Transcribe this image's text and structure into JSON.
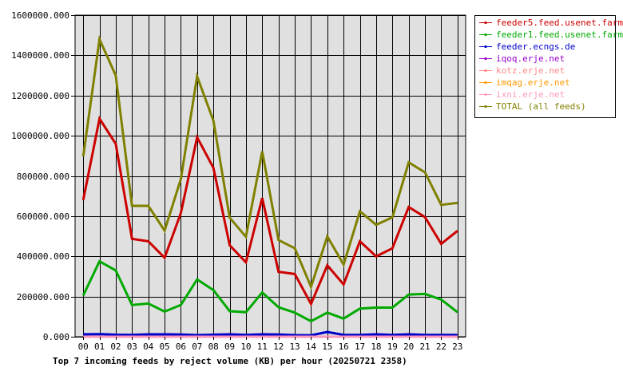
{
  "chart_data": {
    "type": "line",
    "title": "Top 7 incoming feeds by reject volume (KB) per hour (20250721 2358)",
    "xlabel": "",
    "ylabel": "",
    "categories": [
      "00",
      "01",
      "02",
      "03",
      "04",
      "05",
      "06",
      "07",
      "08",
      "09",
      "10",
      "11",
      "12",
      "13",
      "14",
      "15",
      "16",
      "17",
      "18",
      "19",
      "20",
      "21",
      "22",
      "23"
    ],
    "ylim": [
      0,
      1600000
    ],
    "yticks": [
      0,
      200000,
      400000,
      600000,
      800000,
      1000000,
      1200000,
      1400000,
      1600000
    ],
    "ytick_labels": [
      "0.000",
      "200000.000",
      "400000.000",
      "600000.000",
      "800000.000",
      "1000000.000",
      "1200000.000",
      "1400000.000",
      "1600000.000"
    ],
    "grid": true,
    "legend_position": "right",
    "series": [
      {
        "name": "feeder5.feed.usenet.farm",
        "color": "#cc0000",
        "values": [
          680000,
          1085000,
          960000,
          487000,
          475000,
          393000,
          615000,
          992000,
          840000,
          455000,
          370000,
          690000,
          323000,
          312000,
          163000,
          355000,
          260000,
          475000,
          400000,
          440000,
          645000,
          595000,
          462000,
          527000
        ]
      },
      {
        "name": "feeder1.feed.usenet.farm",
        "color": "#00aa00",
        "values": [
          205000,
          375000,
          330000,
          158000,
          165000,
          125000,
          158000,
          285000,
          232000,
          127000,
          122000,
          220000,
          147000,
          120000,
          77000,
          120000,
          90000,
          140000,
          145000,
          145000,
          210000,
          213000,
          185000,
          122000
        ]
      },
      {
        "name": "feeder.ecngs.de",
        "color": "#0000cc",
        "values": [
          12000,
          13000,
          10000,
          9000,
          12000,
          12000,
          11000,
          8000,
          10000,
          12000,
          9000,
          12000,
          11000,
          8000,
          7000,
          24000,
          9000,
          9000,
          12000,
          9000,
          12000,
          9000,
          9000,
          9000
        ]
      },
      {
        "name": "iqoq.erje.net",
        "color": "#9900cc",
        "values": [
          0,
          0,
          0,
          0,
          0,
          0,
          0,
          0,
          0,
          0,
          0,
          0,
          0,
          0,
          0,
          0,
          0,
          0,
          0,
          0,
          0,
          0,
          0,
          0
        ]
      },
      {
        "name": "kotz.erje.net",
        "color": "#ff8888",
        "values": [
          0,
          0,
          0,
          0,
          0,
          0,
          0,
          0,
          0,
          0,
          0,
          0,
          0,
          0,
          0,
          0,
          0,
          0,
          0,
          0,
          0,
          0,
          0,
          0
        ]
      },
      {
        "name": "imqag.erje.net",
        "color": "#ff9900",
        "values": [
          0,
          0,
          0,
          0,
          0,
          0,
          0,
          0,
          0,
          0,
          0,
          0,
          0,
          0,
          0,
          0,
          0,
          0,
          0,
          0,
          0,
          0,
          0,
          0
        ]
      },
      {
        "name": "ixni.erje.net",
        "color": "#ff99bb",
        "values": [
          0,
          0,
          0,
          0,
          0,
          0,
          0,
          0,
          0,
          0,
          0,
          0,
          0,
          0,
          0,
          0,
          0,
          0,
          0,
          0,
          0,
          0,
          0,
          0
        ]
      },
      {
        "name": "TOTAL (all feeds)",
        "color": "#808000",
        "values": [
          897000,
          1480000,
          1300000,
          651000,
          651000,
          528000,
          784000,
          1295000,
          1075000,
          592000,
          497000,
          922000,
          481000,
          440000,
          248000,
          499000,
          359000,
          624000,
          557000,
          594000,
          867000,
          818000,
          656000,
          666000
        ]
      }
    ]
  }
}
